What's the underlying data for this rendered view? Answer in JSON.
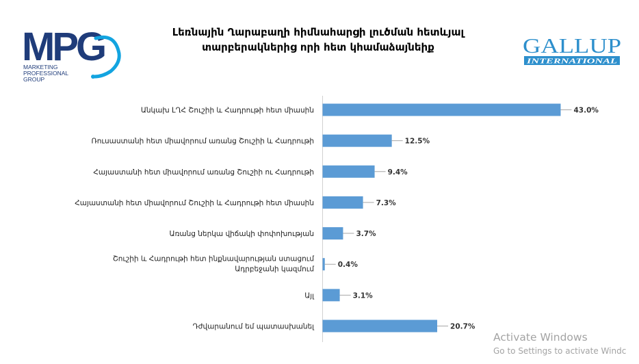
{
  "header": {
    "title_line1": "Լեռնային Ղարաբաղի  հիմնահարցի լուծման հետևյալ",
    "title_line2": "տարբերակներից որի հետ կհամաձայնեիք",
    "mpg_logo_text": "MPG",
    "mpg_subtitle_lines": [
      "MARKETING",
      "PROFESSIONAL",
      "GROUP"
    ],
    "gallup_logo_text": "GALLUP",
    "gallup_logo_subtext": "INTERNATIONAL"
  },
  "colors": {
    "bar": "#5b9bd5",
    "mpg_navy": "#1f3c7a",
    "mpg_cyan": "#13a4e0",
    "gallup_blue": "#2d8fcc"
  },
  "chart_data": {
    "type": "bar",
    "orientation": "horizontal",
    "value_suffix": "%",
    "xlim": [
      0,
      50
    ],
    "grid": false,
    "categories": [
      [
        "Անկախ ԼՂՀ Շուշիի և Հադրութի հետ միասին"
      ],
      [
        "Ռուսաստանի հետ միավորում առանց Շուշիի և Հադրութի"
      ],
      [
        "Հայաստանի հետ միավորում առանց Շուշիի ու Հադրութի"
      ],
      [
        "Հայաստանի հետ միավորում Շուշիի և Հադրութի հետ միասին"
      ],
      [
        "Առանց ներկա վիճակի փոփոխության"
      ],
      [
        "Շուշիի և Հադրութի հետ ինքնավարության ստացում",
        "Ադրբեջանի կազմում"
      ],
      [
        "Այլ"
      ],
      [
        "Դժվարանում եմ պատասխանել"
      ]
    ],
    "values": [
      43.0,
      12.5,
      9.4,
      7.3,
      3.7,
      0.4,
      3.1,
      20.7
    ],
    "value_labels": [
      "43.0%",
      "12.5%",
      "9.4%",
      "7.3%",
      "3.7%",
      "0.4%",
      "3.1%",
      "20.7%"
    ]
  },
  "watermark": {
    "line1": "Activate Windows",
    "line2": "Go to Settings to activate Windc"
  }
}
